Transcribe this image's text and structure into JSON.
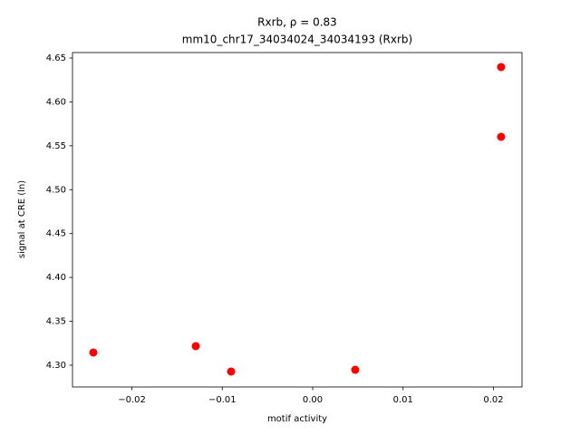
{
  "chart_data": {
    "type": "scatter",
    "title": "Rxrb, ρ = 0.83",
    "subtitle": "mm10_chr17_34034024_34034193 (Rxrb)",
    "x_label": "motif activity",
    "y_label": "signal at CRE (ln)",
    "color": "#ff0000",
    "x": [
      -0.02426,
      -0.01293,
      -0.00902,
      0.00471,
      0.02085,
      0.02085
    ],
    "values": [
      4.3145,
      4.3217,
      4.2928,
      4.2948,
      4.5602,
      4.6397
    ],
    "xlim": [
      -0.02657,
      0.02316
    ],
    "ylim": [
      4.2752,
      4.6562
    ],
    "xticks": [
      {
        "value": -0.02,
        "label": "−0.02"
      },
      {
        "value": -0.01,
        "label": "−0.01"
      },
      {
        "value": 0,
        "label": "0.00"
      },
      {
        "value": 0.01,
        "label": "0.01"
      },
      {
        "value": 0.02,
        "label": "0.02"
      }
    ],
    "yticks": [
      {
        "value": 4.3,
        "label": "4.30"
      },
      4.35,
      {
        "value": 4.4,
        "label": "4.40"
      },
      4.45,
      {
        "value": 4.5,
        "label": "4.50"
      },
      4.55,
      {
        "value": 4.6,
        "label": "4.60"
      },
      4.65
    ]
  }
}
